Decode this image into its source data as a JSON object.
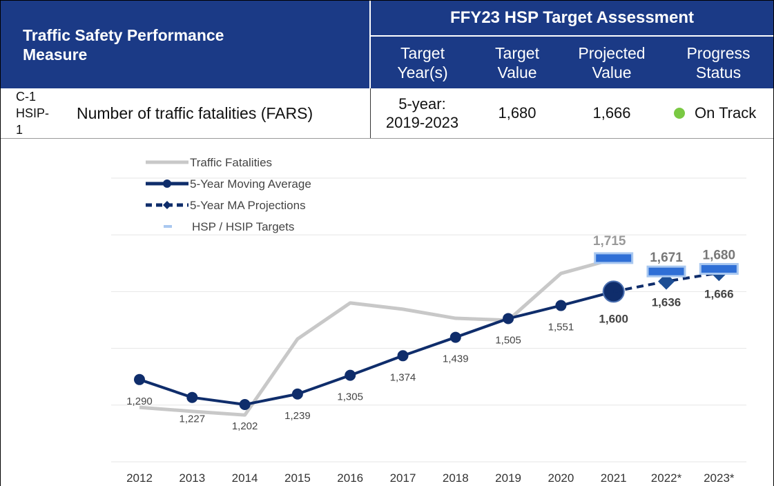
{
  "header": {
    "measure_title": "Traffic Safety Performance Measure",
    "assessment_title": "FFY23 HSP Target Assessment",
    "columns": [
      "Target Year(s)",
      "Target Value",
      "Projected Value",
      "Progress Status"
    ]
  },
  "row": {
    "code": "C-1 HSIP-1",
    "measure": "Number of traffic fatalities (FARS)",
    "target_years": "5-year: 2019-2023",
    "target_value": "1,680",
    "projected_value": "1,666",
    "status": "On Track",
    "status_color": "#7ac943"
  },
  "chart_data": {
    "type": "line",
    "categories": [
      "2012",
      "2013",
      "2014",
      "2015",
      "2016",
      "2017",
      "2018",
      "2019",
      "2020",
      "2021",
      "2022*",
      "2023*"
    ],
    "ylim": [
      1000,
      2000
    ],
    "gridlines": [
      1000,
      1200,
      1400,
      1600,
      1800,
      2000
    ],
    "series": [
      {
        "name": "Traffic Fatalities",
        "color": "#c8c8c8",
        "style": "solid",
        "values": [
          1192,
          1178,
          1165,
          1433,
          1560,
          1538,
          1506,
          1499,
          1664,
          1715,
          null,
          null
        ],
        "value_labels": [
          null,
          null,
          null,
          null,
          null,
          null,
          null,
          null,
          null,
          "1,715",
          null,
          null
        ]
      },
      {
        "name": "5-Year Moving Average",
        "color": "#0f2d6b",
        "style": "marker",
        "values": [
          1290,
          1227,
          1202,
          1239,
          1305,
          1374,
          1439,
          1505,
          1551,
          1600,
          null,
          null
        ],
        "value_labels": [
          "1,290",
          "1,227",
          "1,202",
          "1,239",
          "1,305",
          "1,374",
          "1,439",
          "1,505",
          "1,551",
          "1,600",
          null,
          null
        ]
      },
      {
        "name": "5-Year MA Projections",
        "color": "#0f2d6b",
        "style": "dashed",
        "values": [
          null,
          null,
          null,
          null,
          null,
          null,
          null,
          null,
          null,
          1600,
          1636,
          1666
        ],
        "value_labels": [
          null,
          null,
          null,
          null,
          null,
          null,
          null,
          null,
          null,
          null,
          "1,636",
          "1,666"
        ]
      },
      {
        "name": "HSP / HSIP Targets",
        "color": "#2f6fd6",
        "style": "target",
        "values": [
          null,
          null,
          null,
          null,
          null,
          null,
          null,
          null,
          null,
          1718,
          1671,
          1680
        ],
        "value_labels": [
          null,
          null,
          null,
          null,
          null,
          null,
          null,
          null,
          null,
          null,
          "1,671",
          "1,680"
        ]
      }
    ]
  }
}
